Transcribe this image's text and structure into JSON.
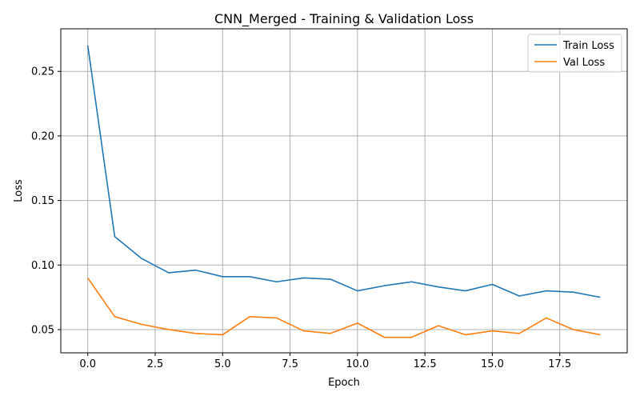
{
  "chart_data": {
    "type": "line",
    "title": "CNN_Merged - Training & Validation Loss",
    "xlabel": "Epoch",
    "ylabel": "Loss",
    "x": [
      0,
      1,
      2,
      3,
      4,
      5,
      6,
      7,
      8,
      9,
      10,
      11,
      12,
      13,
      14,
      15,
      16,
      17,
      18,
      19
    ],
    "xlim": [
      -1.0,
      20.0
    ],
    "ylim": [
      0.032,
      0.283
    ],
    "xticks": [
      0.0,
      2.5,
      5.0,
      7.5,
      10.0,
      12.5,
      15.0,
      17.5
    ],
    "xtick_labels": [
      "0.0",
      "2.5",
      "5.0",
      "7.5",
      "10.0",
      "12.5",
      "15.0",
      "17.5"
    ],
    "yticks": [
      0.05,
      0.1,
      0.15,
      0.2,
      0.25
    ],
    "ytick_labels": [
      "0.05",
      "0.10",
      "0.15",
      "0.20",
      "0.25"
    ],
    "grid": true,
    "legend_position": "top-right",
    "series": [
      {
        "name": "Train Loss",
        "color": "#1f77b4",
        "values": [
          0.27,
          0.122,
          0.105,
          0.094,
          0.096,
          0.091,
          0.091,
          0.087,
          0.09,
          0.089,
          0.08,
          0.084,
          0.087,
          0.083,
          0.08,
          0.085,
          0.076,
          0.08,
          0.079,
          0.075
        ]
      },
      {
        "name": "Val Loss",
        "color": "#ff7f0e",
        "values": [
          0.09,
          0.06,
          0.054,
          0.05,
          0.047,
          0.046,
          0.06,
          0.059,
          0.049,
          0.047,
          0.055,
          0.044,
          0.044,
          0.053,
          0.046,
          0.049,
          0.047,
          0.059,
          0.05,
          0.046
        ]
      }
    ]
  }
}
